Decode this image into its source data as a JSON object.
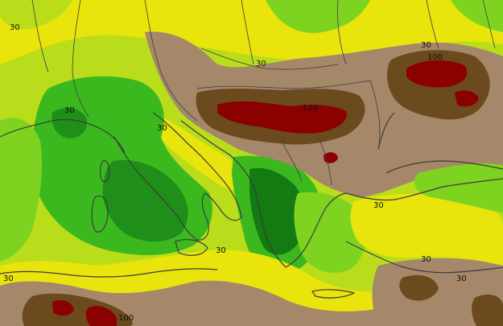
{
  "map": {
    "palette": {
      "dry_dark_brown": "#6b4a1e",
      "brown": "#a5876a",
      "light_brown": "#b59a7e",
      "yellow": "#e8e40c",
      "yellow_green": "#b9dd1a",
      "light_green": "#7ed321",
      "green": "#3cb81f",
      "dark_green": "#1f8f1a",
      "deep_green": "#147a12",
      "dark_red": "#8b0000",
      "red": "#b00000",
      "coastline": "#3c3c3c"
    },
    "contour_labels": [
      {
        "id": "a",
        "text": "30"
      },
      {
        "id": "b",
        "text": "30"
      },
      {
        "id": "c",
        "text": "30"
      },
      {
        "id": "d",
        "text": "100"
      },
      {
        "id": "e",
        "text": "30"
      },
      {
        "id": "f",
        "text": "100"
      },
      {
        "id": "g",
        "text": "30"
      },
      {
        "id": "h",
        "text": "30"
      },
      {
        "id": "i",
        "text": "30"
      },
      {
        "id": "j",
        "text": "30"
      },
      {
        "id": "k",
        "text": "30"
      },
      {
        "id": "l",
        "text": "30"
      },
      {
        "id": "m",
        "text": "100"
      }
    ]
  }
}
